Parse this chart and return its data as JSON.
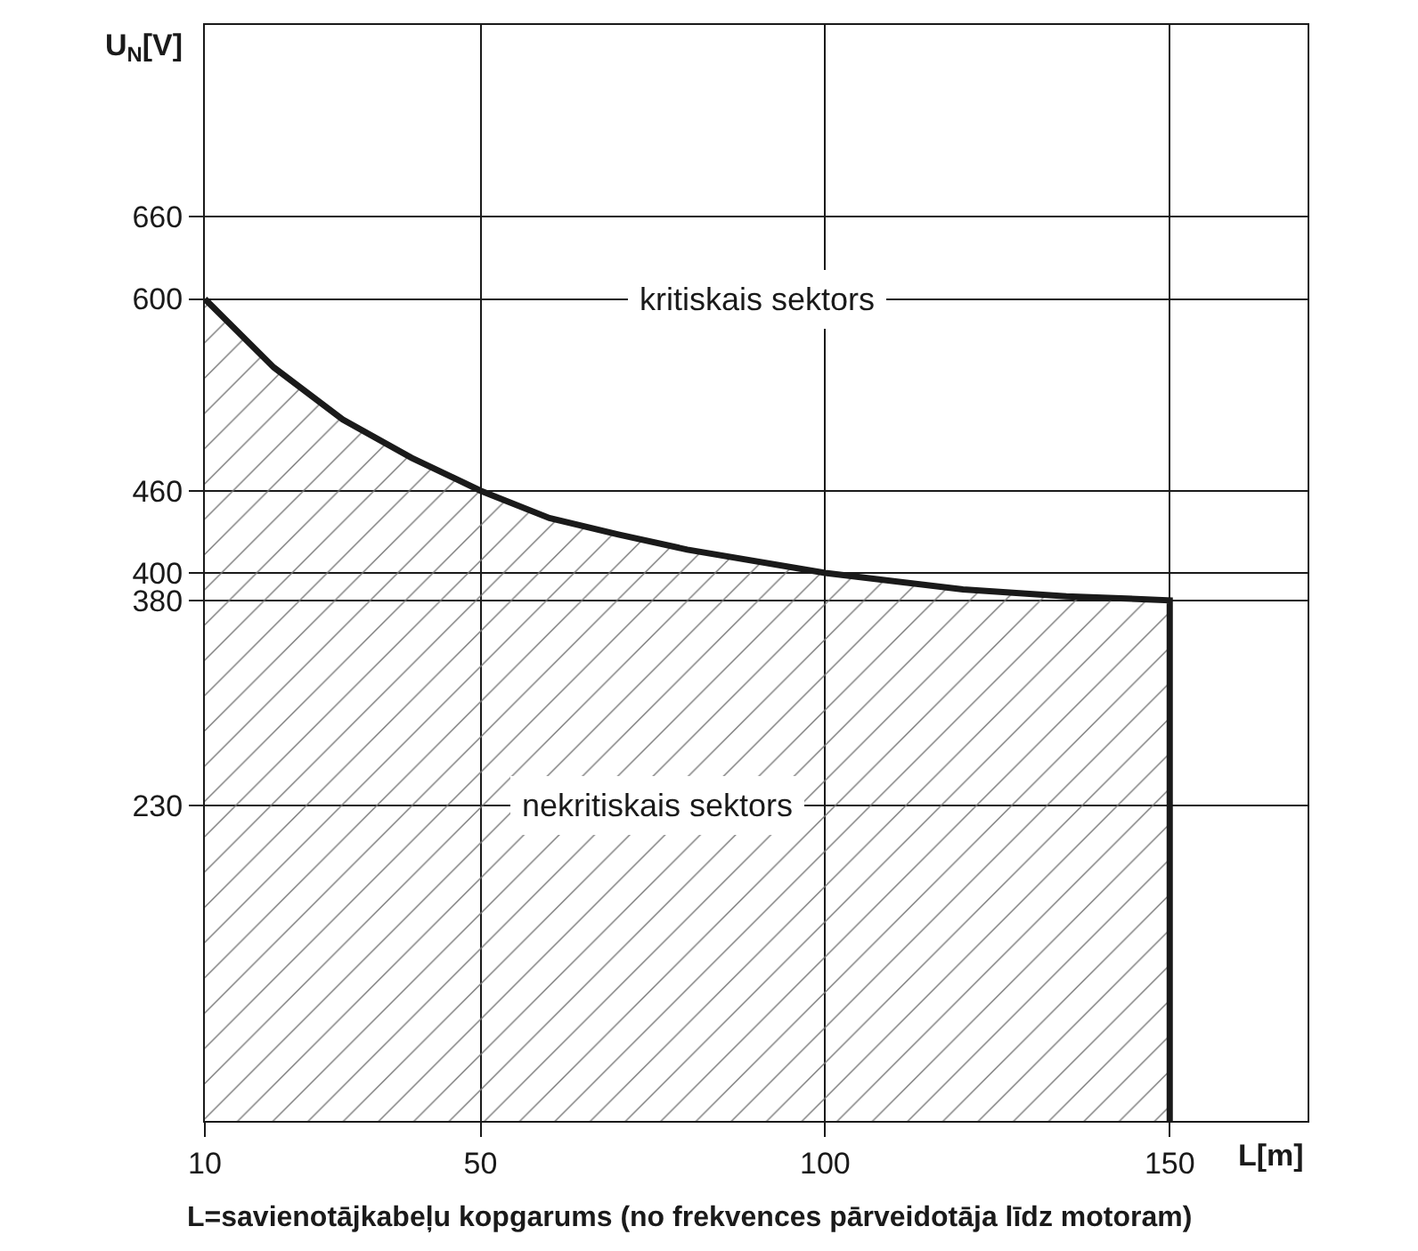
{
  "chart_data": {
    "type": "area",
    "xlabel": "L[m]",
    "ylabel": "U$_{N}$[V]",
    "x": [
      10,
      20,
      30,
      40,
      50,
      60,
      70,
      80,
      100,
      120,
      135,
      150,
      150
    ],
    "series": [
      {
        "color": "#1a1a1a",
        "values": [
          600,
          550,
          512,
          484,
          460,
          440,
          428,
          417,
          400,
          388,
          383,
          380,
          0
        ]
      }
    ],
    "xlim": [
      10,
      170
    ],
    "ylim": [
      0,
      800
    ],
    "xticks": [
      10,
      50,
      100,
      150
    ],
    "yticks": [
      230,
      380,
      400,
      460,
      600,
      660
    ],
    "grid": true,
    "marker": "none",
    "line_style": "solid",
    "annotations": [
      "kritiskais sektors",
      "nekritiskais sektors",
      "L=savienotājkabeļu kopgarums (no frekvences pārveidotāja līdz motoram)"
    ]
  }
}
